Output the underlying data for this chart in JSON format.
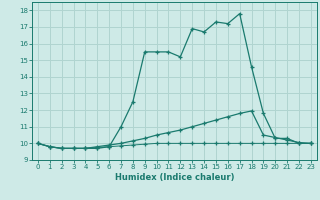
{
  "xlabel": "Humidex (Indice chaleur)",
  "background_color": "#ceeae7",
  "grid_color": "#b0d4d0",
  "line_color": "#1a7a6e",
  "xlim": [
    -0.5,
    23.5
  ],
  "ylim": [
    9,
    18.5
  ],
  "yticks": [
    9,
    10,
    11,
    12,
    13,
    14,
    15,
    16,
    17,
    18
  ],
  "xticks": [
    0,
    1,
    2,
    3,
    4,
    5,
    6,
    7,
    8,
    9,
    10,
    11,
    12,
    13,
    14,
    15,
    16,
    17,
    18,
    19,
    20,
    21,
    22,
    23
  ],
  "series1_x": [
    0,
    1,
    2,
    3,
    4,
    5,
    6,
    7,
    8,
    9,
    10,
    11,
    12,
    13,
    14,
    15,
    16,
    17,
    18,
    19,
    20,
    21,
    22,
    23
  ],
  "series1_y": [
    10.0,
    9.8,
    9.7,
    9.7,
    9.7,
    9.7,
    9.8,
    11.0,
    12.5,
    15.5,
    15.5,
    15.5,
    15.2,
    16.9,
    16.7,
    17.3,
    17.2,
    17.8,
    14.6,
    11.8,
    10.3,
    10.3,
    10.0,
    10.0
  ],
  "series2_x": [
    0,
    1,
    2,
    3,
    4,
    5,
    6,
    7,
    8,
    9,
    10,
    11,
    12,
    13,
    14,
    15,
    16,
    17,
    18,
    19,
    20,
    21,
    22,
    23
  ],
  "series2_y": [
    10.0,
    9.8,
    9.7,
    9.7,
    9.7,
    9.8,
    9.9,
    10.0,
    10.15,
    10.3,
    10.5,
    10.65,
    10.8,
    11.0,
    11.2,
    11.4,
    11.6,
    11.8,
    11.95,
    10.5,
    10.35,
    10.2,
    10.05,
    10.0
  ],
  "series3_x": [
    0,
    1,
    2,
    3,
    4,
    5,
    6,
    7,
    8,
    9,
    10,
    11,
    12,
    13,
    14,
    15,
    16,
    17,
    18,
    19,
    20,
    21,
    22,
    23
  ],
  "series3_y": [
    10.0,
    9.8,
    9.7,
    9.7,
    9.7,
    9.75,
    9.8,
    9.85,
    9.9,
    9.95,
    10.0,
    10.0,
    10.0,
    10.0,
    10.0,
    10.0,
    10.0,
    10.0,
    10.0,
    10.0,
    10.0,
    10.0,
    10.0,
    10.0
  ]
}
